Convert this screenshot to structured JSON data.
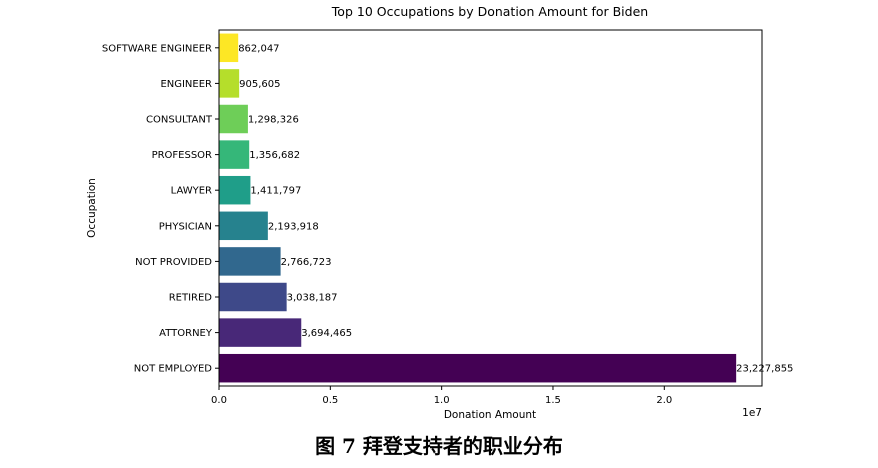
{
  "chart_data": {
    "type": "bar",
    "orientation": "horizontal",
    "title": "Top 10 Occupations by Donation Amount for Biden",
    "xlabel": "Donation Amount",
    "ylabel": "Occupation",
    "x_scale_label": "1e7",
    "xlim": [
      0,
      24388000
    ],
    "x_ticks": [
      0,
      5000000,
      10000000,
      15000000,
      20000000
    ],
    "x_tick_labels": [
      "0.0",
      "0.5",
      "1.0",
      "1.5",
      "2.0"
    ],
    "grid": false,
    "legend": "none",
    "categories": [
      "NOT EMPLOYED",
      "ATTORNEY",
      "RETIRED",
      "NOT PROVIDED",
      "PHYSICIAN",
      "LAWYER",
      "PROFESSOR",
      "CONSULTANT",
      "ENGINEER",
      "SOFTWARE ENGINEER"
    ],
    "values": [
      23227855,
      3694465,
      3038187,
      2766723,
      2193918,
      1411797,
      1356682,
      1298326,
      905605,
      862047
    ],
    "value_labels": [
      "23,227,855",
      "3,694,465",
      "3,038,187",
      "2,766,723",
      "2,193,918",
      "1,411,797",
      "1,356,682",
      "1,298,326",
      "905,605",
      "862,047"
    ],
    "colors": [
      "#440154",
      "#482878",
      "#3e4989",
      "#31688e",
      "#26828e",
      "#1f9e89",
      "#35b779",
      "#6ece58",
      "#b5de2b",
      "#fde725"
    ]
  },
  "caption": "图 7 拜登支持者的职业分布"
}
